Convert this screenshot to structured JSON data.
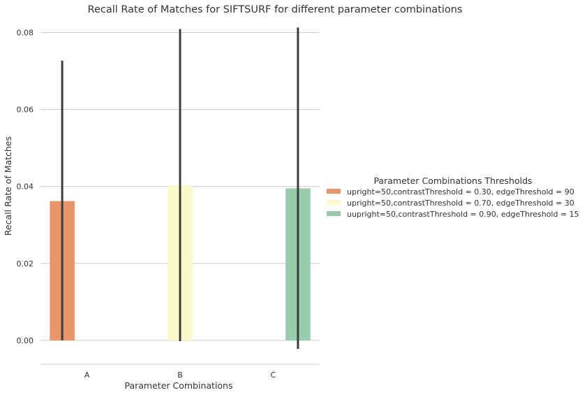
{
  "chart_data": {
    "type": "bar",
    "title": "Recall Rate of Matches for SIFTSURF for different parameter combinations",
    "xlabel": "Parameter Combinations",
    "ylabel": "Recall Rate of Matches",
    "categories": [
      "A",
      "B",
      "C"
    ],
    "ylim": [
      -0.0062,
      0.083
    ],
    "yticks": [
      0.0,
      0.02,
      0.04,
      0.06,
      0.08
    ],
    "ytick_labels": [
      "0.00",
      "0.02",
      "0.04",
      "0.06",
      "0.08"
    ],
    "grid": "horizontal",
    "legend_title": "Parameter Combinations Thresholds",
    "legend_position": "right",
    "series": [
      {
        "name": "upright=50,contrastThreshold = 0.30, edgeThreshold = 90",
        "color": "#e8956a",
        "values": [
          0.0362,
          null,
          null
        ],
        "ci": [
          [
            0.0,
            0.0727
          ],
          null,
          null
        ]
      },
      {
        "name": "upright=50,contrastThreshold = 0.70, edgeThreshold = 30",
        "color": "#fbf8c9",
        "values": [
          null,
          0.0403,
          null
        ],
        "ci": [
          null,
          [
            -0.0002,
            0.0809
          ],
          null
        ]
      },
      {
        "name": "uupright=50,contrastThreshold = 0.90, edgeThreshold = 15",
        "color": "#98ccad",
        "values": [
          null,
          null,
          0.0395
        ],
        "ci": [
          null,
          null,
          [
            -0.0022,
            0.0813
          ]
        ]
      }
    ]
  }
}
